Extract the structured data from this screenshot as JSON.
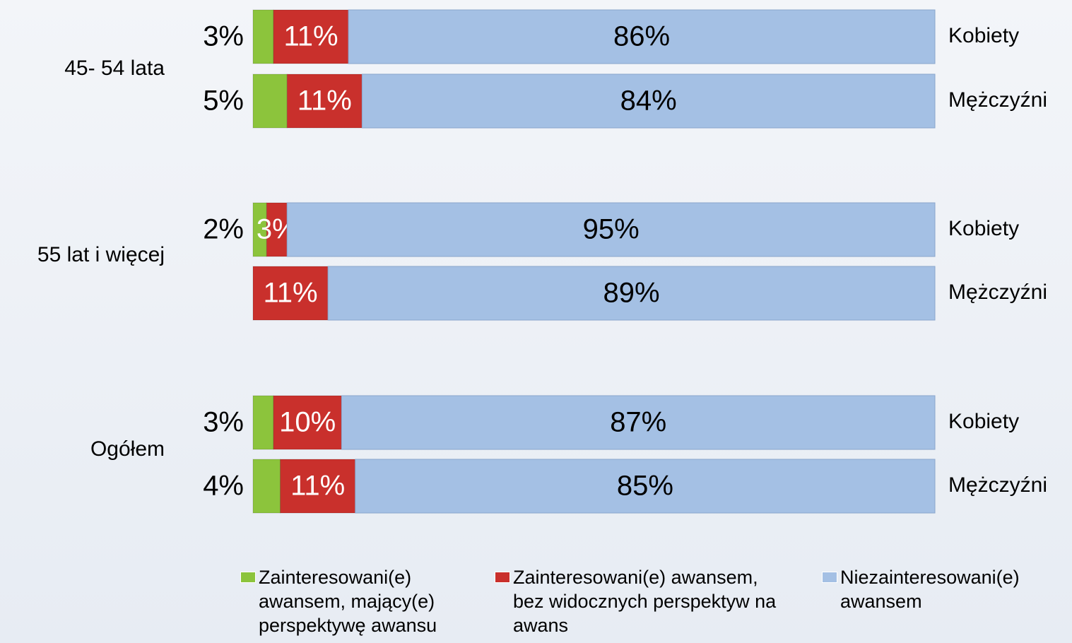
{
  "chart_data": {
    "type": "stacked-bar-horizontal",
    "groups": [
      "45- 54 lata",
      "55 lat i więcej",
      "Ogółem"
    ],
    "categories": [
      "Kobiety",
      "Mężczyźni",
      "Kobiety",
      "Mężczyźni",
      "Kobiety",
      "Mężczyźni"
    ],
    "series": [
      {
        "name": "Zainteresowani(e) awansem, mający(e) perspektywę awansu",
        "color": "#8cc43c",
        "values": [
          3,
          5,
          2,
          null,
          3,
          4
        ],
        "value_labels": [
          "3%",
          "5%",
          "2%",
          null,
          "3%",
          "4%"
        ]
      },
      {
        "name": "Zainteresowani(e) awansem, bez widocznych perspektyw na awans",
        "color": "#c9302c",
        "values": [
          11,
          11,
          3,
          11,
          10,
          11
        ],
        "value_labels": [
          "11%",
          "11%",
          "3%",
          "11%",
          "10%",
          "11%"
        ]
      },
      {
        "name": "Niezainteresowani(e) awansem",
        "color": "#a4c0e4",
        "values": [
          86,
          84,
          95,
          89,
          87,
          85
        ],
        "value_labels": [
          "86%",
          "84%",
          "95%",
          "89%",
          "87%",
          "85%"
        ]
      }
    ],
    "xlim": [
      0,
      100
    ]
  }
}
